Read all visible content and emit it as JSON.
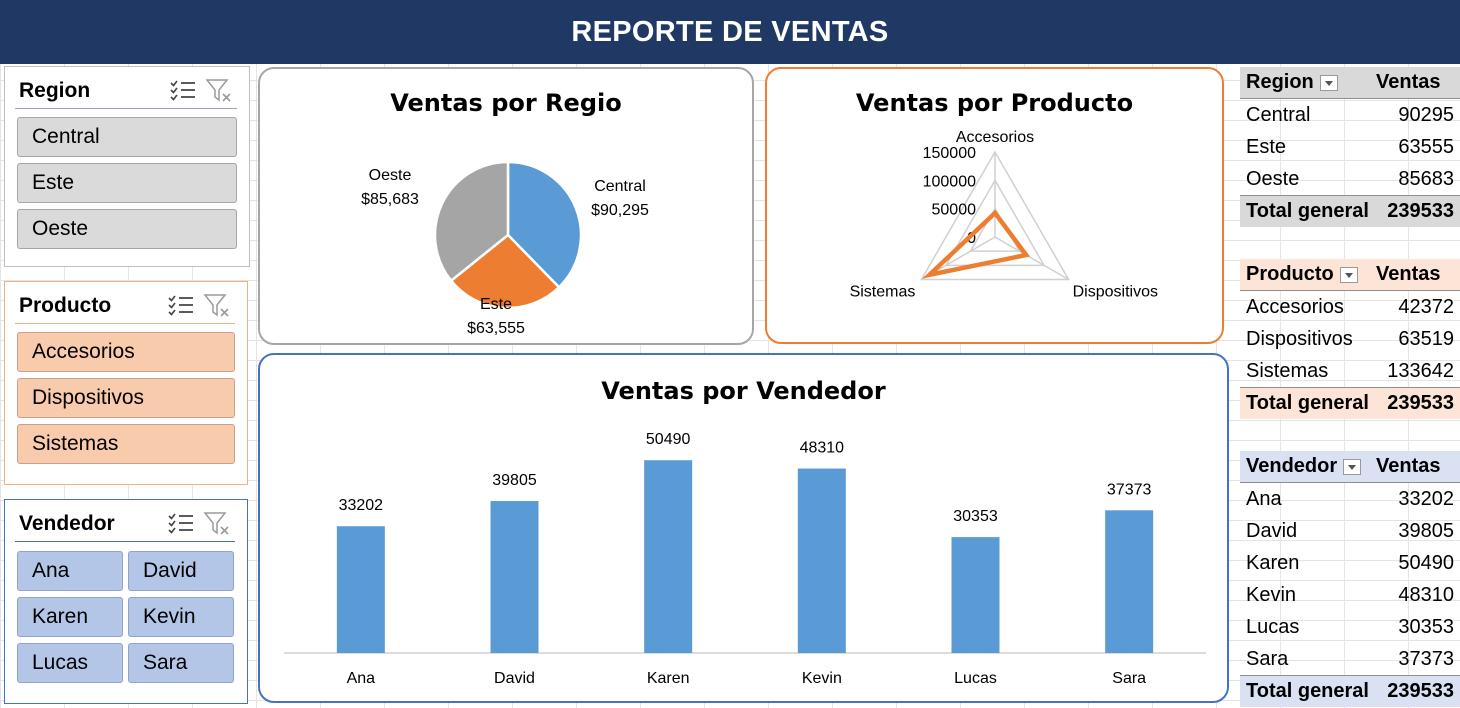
{
  "title": "REPORTE DE VENTAS",
  "colors": {
    "header_bg": "#1f3864",
    "pie_central": "#5b9bd5",
    "pie_este": "#ed7d31",
    "pie_oeste": "#a5a5a5",
    "radar": "#ed7d31",
    "bar": "#5b9bd5",
    "region_fill": "#d9d9d9",
    "producto_fill": "#f8cbad",
    "vendedor_fill": "#b4c6e7"
  },
  "slicers": {
    "region": {
      "title": "Region",
      "items": [
        "Central",
        "Este",
        "Oeste"
      ]
    },
    "producto": {
      "title": "Producto",
      "items": [
        "Accesorios",
        "Dispositivos",
        "Sistemas"
      ]
    },
    "vendedor": {
      "title": "Vendedor",
      "items": [
        "Ana",
        "David",
        "Karen",
        "Kevin",
        "Lucas",
        "Sara"
      ]
    },
    "icons": [
      "multi-select-icon",
      "clear-filter-icon"
    ]
  },
  "chart_data": [
    {
      "type": "pie",
      "title": "Ventas por Regio",
      "categories": [
        "Central",
        "Este",
        "Oeste"
      ],
      "values": [
        90295,
        63555,
        85683
      ],
      "data_labels": [
        "$90,295",
        "$63,555",
        "$85,683"
      ]
    },
    {
      "type": "radar",
      "title": "Ventas por Producto",
      "categories": [
        "Accesorios",
        "Dispositivos",
        "Sistemas"
      ],
      "values": [
        42372,
        63519,
        133642
      ],
      "axis_ticks": [
        "150000",
        "100000",
        "50000",
        "0"
      ],
      "ylim": [
        0,
        150000
      ]
    },
    {
      "type": "bar",
      "title": "Ventas por Vendedor",
      "categories": [
        "Ana",
        "David",
        "Karen",
        "Kevin",
        "Lucas",
        "Sara"
      ],
      "values": [
        33202,
        39805,
        50490,
        48310,
        30353,
        37373
      ],
      "data_labels": [
        "33202",
        "39805",
        "50490",
        "48310",
        "30353",
        "37373"
      ],
      "ylim": [
        0,
        55000
      ]
    }
  ],
  "pivots": {
    "region": {
      "header": [
        "Region",
        "Ventas"
      ],
      "rows": [
        [
          "Central",
          "90295"
        ],
        [
          "Este",
          "63555"
        ],
        [
          "Oeste",
          "85683"
        ]
      ],
      "total": [
        "Total general",
        "239533"
      ]
    },
    "producto": {
      "header": [
        "Producto",
        "Ventas"
      ],
      "rows": [
        [
          "Accesorios",
          "42372"
        ],
        [
          "Dispositivos",
          "63519"
        ],
        [
          "Sistemas",
          "133642"
        ]
      ],
      "total": [
        "Total general",
        "239533"
      ]
    },
    "vendedor": {
      "header": [
        "Vendedor",
        "Ventas"
      ],
      "rows": [
        [
          "Ana",
          "33202"
        ],
        [
          "David",
          "39805"
        ],
        [
          "Karen",
          "50490"
        ],
        [
          "Kevin",
          "48310"
        ],
        [
          "Lucas",
          "30353"
        ],
        [
          "Sara",
          "37373"
        ]
      ],
      "total": [
        "Total general",
        "239533"
      ]
    }
  }
}
